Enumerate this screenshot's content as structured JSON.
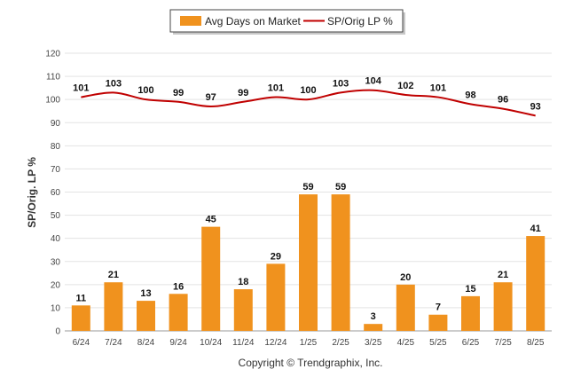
{
  "chart_data": {
    "type": "bar",
    "categories": [
      "6/24",
      "7/24",
      "8/24",
      "9/24",
      "10/24",
      "11/24",
      "12/24",
      "1/25",
      "2/25",
      "3/25",
      "4/25",
      "5/25",
      "6/25",
      "7/25",
      "8/25"
    ],
    "series": [
      {
        "name": "Avg Days on Market",
        "type": "bar",
        "color": "#F0921E",
        "values": [
          11,
          21,
          13,
          16,
          45,
          18,
          29,
          59,
          59,
          3,
          20,
          7,
          15,
          21,
          41
        ]
      },
      {
        "name": "SP/Orig LP %",
        "type": "line",
        "color": "#C00000",
        "values": [
          101,
          103,
          100,
          99,
          97,
          99,
          101,
          100,
          103,
          104,
          102,
          101,
          98,
          96,
          93
        ]
      }
    ],
    "ylabel": "SP/Orig. LP %",
    "ylim": [
      0,
      120
    ],
    "yticks": [
      0,
      10,
      20,
      30,
      40,
      50,
      60,
      70,
      80,
      90,
      100,
      110,
      120
    ],
    "grid": true,
    "legend_position": "top-center"
  },
  "legend": {
    "bar_label": "Avg Days on Market",
    "line_label": "SP/Orig LP %"
  },
  "footer": {
    "copyright": "Copyright © Trendgraphix, Inc."
  }
}
